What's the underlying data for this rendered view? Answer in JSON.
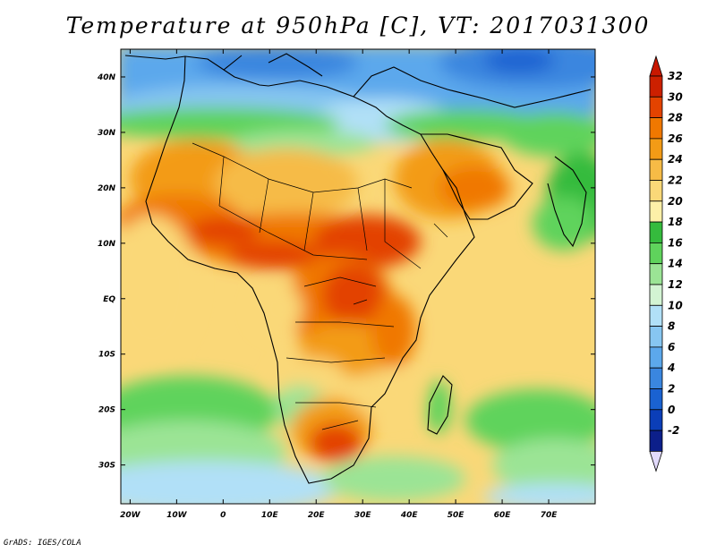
{
  "title": "Temperature at 950hPa [C], VT: 2017031300",
  "footer": "GrADS: IGES/COLA",
  "map": {
    "variable": "Temperature",
    "level": "950hPa",
    "units": "C",
    "valid_time": "2017031300",
    "lon_range": [
      -22,
      80
    ],
    "lat_range": [
      -37,
      45
    ],
    "x_ticks": [
      {
        "value": -20,
        "label": "20W"
      },
      {
        "value": -10,
        "label": "10W"
      },
      {
        "value": 0,
        "label": "0"
      },
      {
        "value": 10,
        "label": "10E"
      },
      {
        "value": 20,
        "label": "20E"
      },
      {
        "value": 30,
        "label": "30E"
      },
      {
        "value": 40,
        "label": "40E"
      },
      {
        "value": 50,
        "label": "50E"
      },
      {
        "value": 60,
        "label": "60E"
      },
      {
        "value": 70,
        "label": "70E"
      }
    ],
    "y_ticks": [
      {
        "value": 40,
        "label": "40N"
      },
      {
        "value": 30,
        "label": "30N"
      },
      {
        "value": 20,
        "label": "20N"
      },
      {
        "value": 10,
        "label": "10N"
      },
      {
        "value": 0,
        "label": "EQ"
      },
      {
        "value": -10,
        "label": "10S"
      },
      {
        "value": -20,
        "label": "20S"
      },
      {
        "value": -30,
        "label": "30S"
      }
    ]
  },
  "colorbar": {
    "levels": [
      {
        "label": "32",
        "value": 32,
        "color": "#cc2000"
      },
      {
        "label": "30",
        "value": 30,
        "color": "#e34300"
      },
      {
        "label": "28",
        "value": 28,
        "color": "#f07800"
      },
      {
        "label": "26",
        "value": 26,
        "color": "#f39b16"
      },
      {
        "label": "24",
        "value": 24,
        "color": "#f6bb46"
      },
      {
        "label": "22",
        "value": 22,
        "color": "#fad878"
      },
      {
        "label": "20",
        "value": 20,
        "color": "#fdf0a8"
      },
      {
        "label": "18",
        "value": 18,
        "color": "#35bb3d"
      },
      {
        "label": "16",
        "value": 16,
        "color": "#5fd35c"
      },
      {
        "label": "14",
        "value": 14,
        "color": "#9be495"
      },
      {
        "label": "12",
        "value": 12,
        "color": "#d3f4d3"
      },
      {
        "label": "10",
        "value": 10,
        "color": "#b1e0f7"
      },
      {
        "label": "8",
        "value": 8,
        "color": "#87c6f1"
      },
      {
        "label": "6",
        "value": 6,
        "color": "#5ca8ec"
      },
      {
        "label": "4",
        "value": 4,
        "color": "#3a86df"
      },
      {
        "label": "2",
        "value": 2,
        "color": "#1a62d1"
      },
      {
        "label": "0",
        "value": 0,
        "color": "#0b3eb8"
      },
      {
        "label": "-2",
        "value": -2,
        "color": "#0c1f8a"
      }
    ],
    "top_arrow_color": "#c81800",
    "bottom_arrow_color": "#e2dafb"
  }
}
